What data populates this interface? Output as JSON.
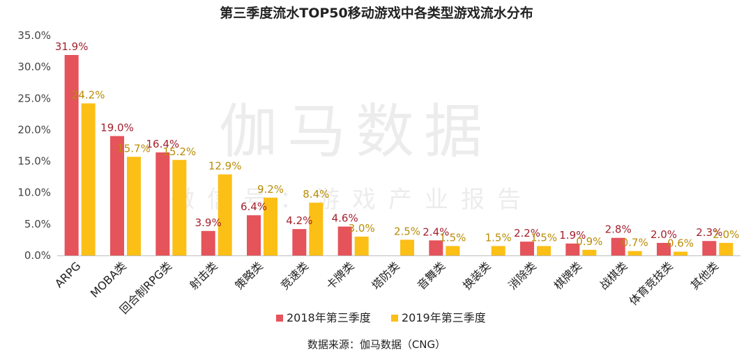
{
  "title": "第三季度流水TOP50移动游戏中各类型游戏流水分布",
  "source": "数据来源：伽马数据（CNG）",
  "watermark": {
    "line1": "伽马数据",
    "line2": "微信号：游戏产业报告"
  },
  "colors": {
    "series2018": "#e5535b",
    "series2019": "#fcbf16",
    "label2018": "#a31f2c",
    "label2019": "#b98c06"
  },
  "chart_data": {
    "type": "bar",
    "title": "第三季度流水TOP50移动游戏中各类型游戏流水分布",
    "xlabel": "",
    "ylabel": "",
    "ylim": [
      0,
      35
    ],
    "y_ticks": [
      "0.0%",
      "5.0%",
      "10.0%",
      "15.0%",
      "20.0%",
      "25.0%",
      "30.0%",
      "35.0%"
    ],
    "grid": false,
    "legend_position": "bottom",
    "categories": [
      "ARPG",
      "MOBA类",
      "回合制RPG类",
      "射击类",
      "策略类",
      "竞速类",
      "卡牌类",
      "塔防类",
      "音舞类",
      "换装类",
      "消除类",
      "棋牌类",
      "战棋类",
      "体育竞技类",
      "其他类"
    ],
    "series": [
      {
        "name": "2018年第三季度",
        "values": [
          31.9,
          19.0,
          16.4,
          3.9,
          6.4,
          4.2,
          4.6,
          null,
          2.4,
          null,
          2.2,
          1.9,
          2.8,
          2.0,
          2.3
        ],
        "labels": [
          "31.9%",
          "19.0%",
          "16.4%",
          "3.9%",
          "6.4%",
          "4.2%",
          "4.6%",
          "",
          "2.4%",
          "",
          "2.2%",
          "1.9%",
          "2.8%",
          "2.0%",
          "2.3%"
        ]
      },
      {
        "name": "2019年第三季度",
        "values": [
          24.2,
          15.7,
          15.2,
          12.9,
          9.2,
          8.4,
          3.0,
          2.5,
          1.5,
          1.5,
          1.5,
          0.9,
          0.7,
          0.6,
          2.0
        ],
        "labels": [
          "24.2%",
          "15.7%",
          "15.2%",
          "12.9%",
          "9.2%",
          "8.4%",
          "3.0%",
          "2.5%",
          "1.5%",
          "1.5%",
          "1.5%",
          "0.9%",
          "0.7%",
          "0.6%",
          "2.0%"
        ]
      }
    ]
  }
}
